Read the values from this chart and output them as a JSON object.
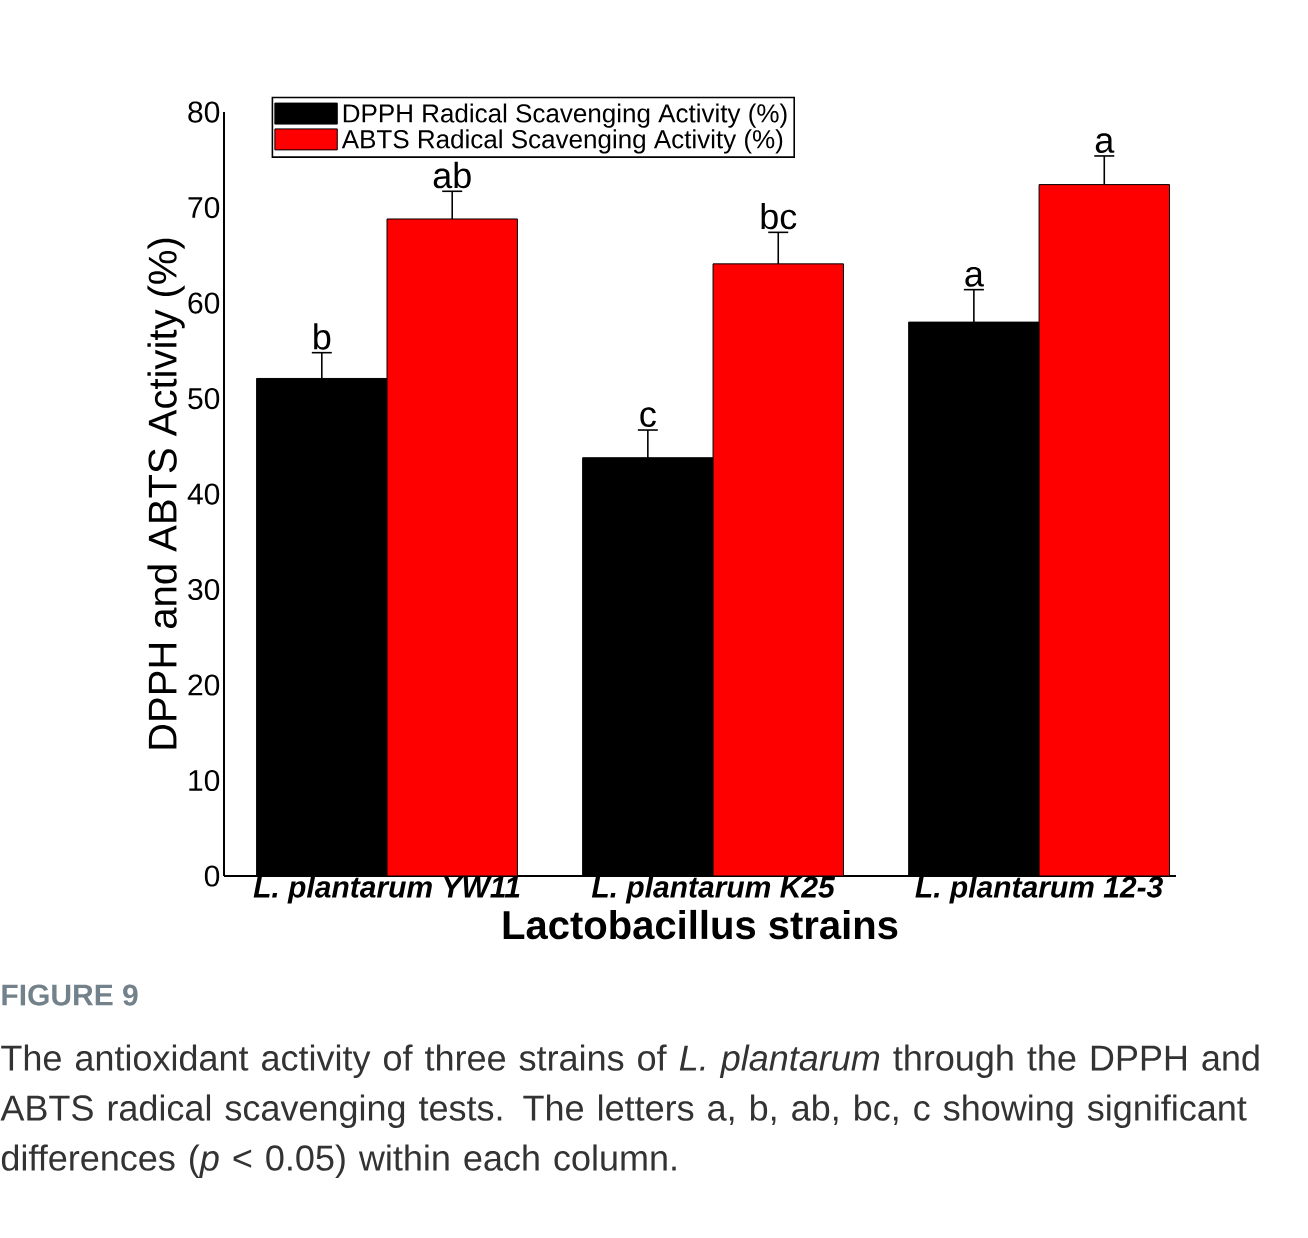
{
  "chart_data": {
    "type": "bar",
    "categories": [
      "L. plantarum YW11",
      "L. plantarum K25",
      "L. plantarum 12-3"
    ],
    "series": [
      {
        "name": "DPPH Radical Scavenging Activity (%)",
        "color": "#000000",
        "values": [
          52.1,
          43.8,
          58.0
        ],
        "errors": [
          2.7,
          2.9,
          3.4
        ]
      },
      {
        "name": "ABTS Radical Scavenging Activity (%)",
        "color": "#ff0000",
        "values": [
          68.8,
          64.1,
          72.4
        ],
        "errors": [
          2.9,
          3.3,
          3.0
        ]
      }
    ],
    "xlabel": "Lactobacillus strains",
    "ylabel": "DPPH and ABTS Activity (%)",
    "ylim": [
      0,
      80
    ],
    "yticks": [
      0,
      10,
      20,
      30,
      40,
      50,
      60,
      70,
      80
    ],
    "legend": "top left",
    "annotations": [
      {
        "text": "b",
        "x": "L. plantarum YW11",
        "y": 52.1
      },
      {
        "text": "ab",
        "x": "L. plantarum YW11",
        "y": 68.8
      },
      {
        "text": "c",
        "x": "L. plantarum K25",
        "y": 43.8
      },
      {
        "text": "bc",
        "x": "L. plantarum K25",
        "y": 64.1
      },
      {
        "text": "a",
        "x": "L. plantarum 12-3",
        "y": 58.0
      },
      {
        "text": "a",
        "x": "L. plantarum 12-3",
        "y": 72.4
      },
      "FIGURE 9",
      "The antioxidant activity of three strains of *L. plantarum* through the DPPH and ABTS radical scavenging tests. The letters a, b, ab, bc, c showing significant differences (*p* < 0.05) within each column."
    ]
  }
}
